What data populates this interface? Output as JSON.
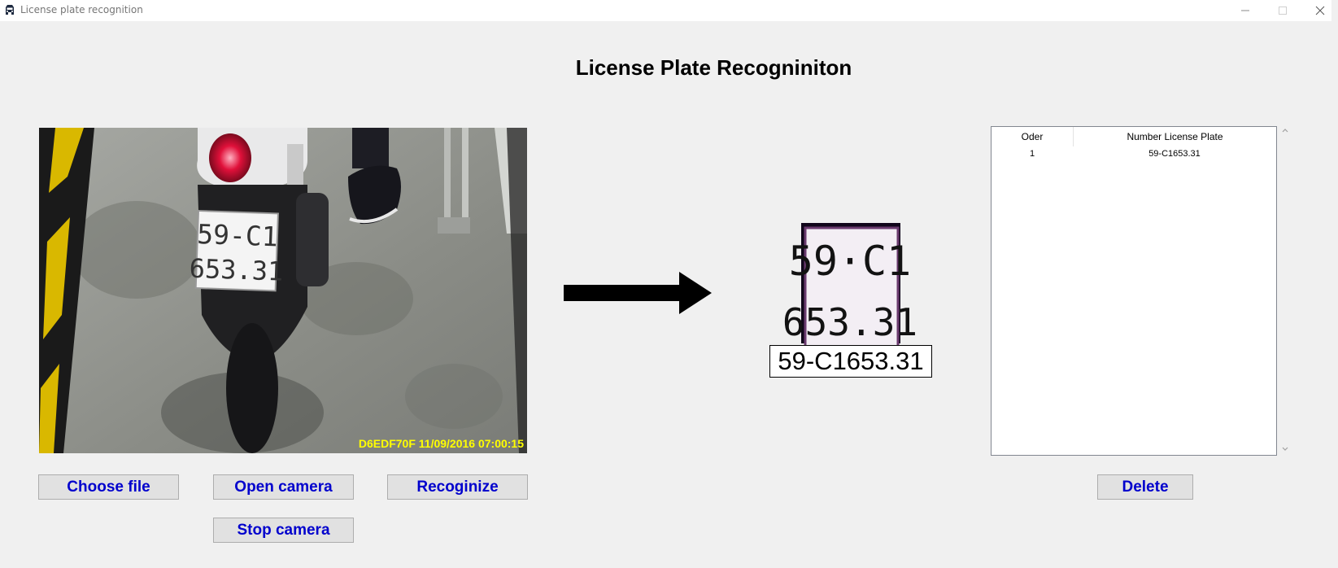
{
  "window": {
    "title": "License plate recognition",
    "icons": {
      "app": "car-icon",
      "minimize": "minimize-icon",
      "maximize": "maximize-icon",
      "close": "close-icon"
    }
  },
  "heading": "License Plate Recogniniton",
  "camera": {
    "plate_line1": "59-C1",
    "plate_line2": "653.31",
    "timestamp": "D6EDF70F  11/09/2016 07:00:15"
  },
  "result": {
    "crop_line1": "59·C1",
    "crop_line2": "653.31",
    "plate_text": "59-C1653.31"
  },
  "table": {
    "headers": [
      "Oder",
      "Number License Plate"
    ],
    "rows": [
      {
        "oder": "1",
        "plate": "59-C1653.31"
      }
    ]
  },
  "buttons": {
    "choose_file": "Choose file",
    "open_camera": "Open camera",
    "recognize": "Recoginize",
    "stop_camera": "Stop camera",
    "delete": "Delete"
  },
  "colors": {
    "button_text": "#0000cd",
    "timestamp": "#ffff00"
  }
}
